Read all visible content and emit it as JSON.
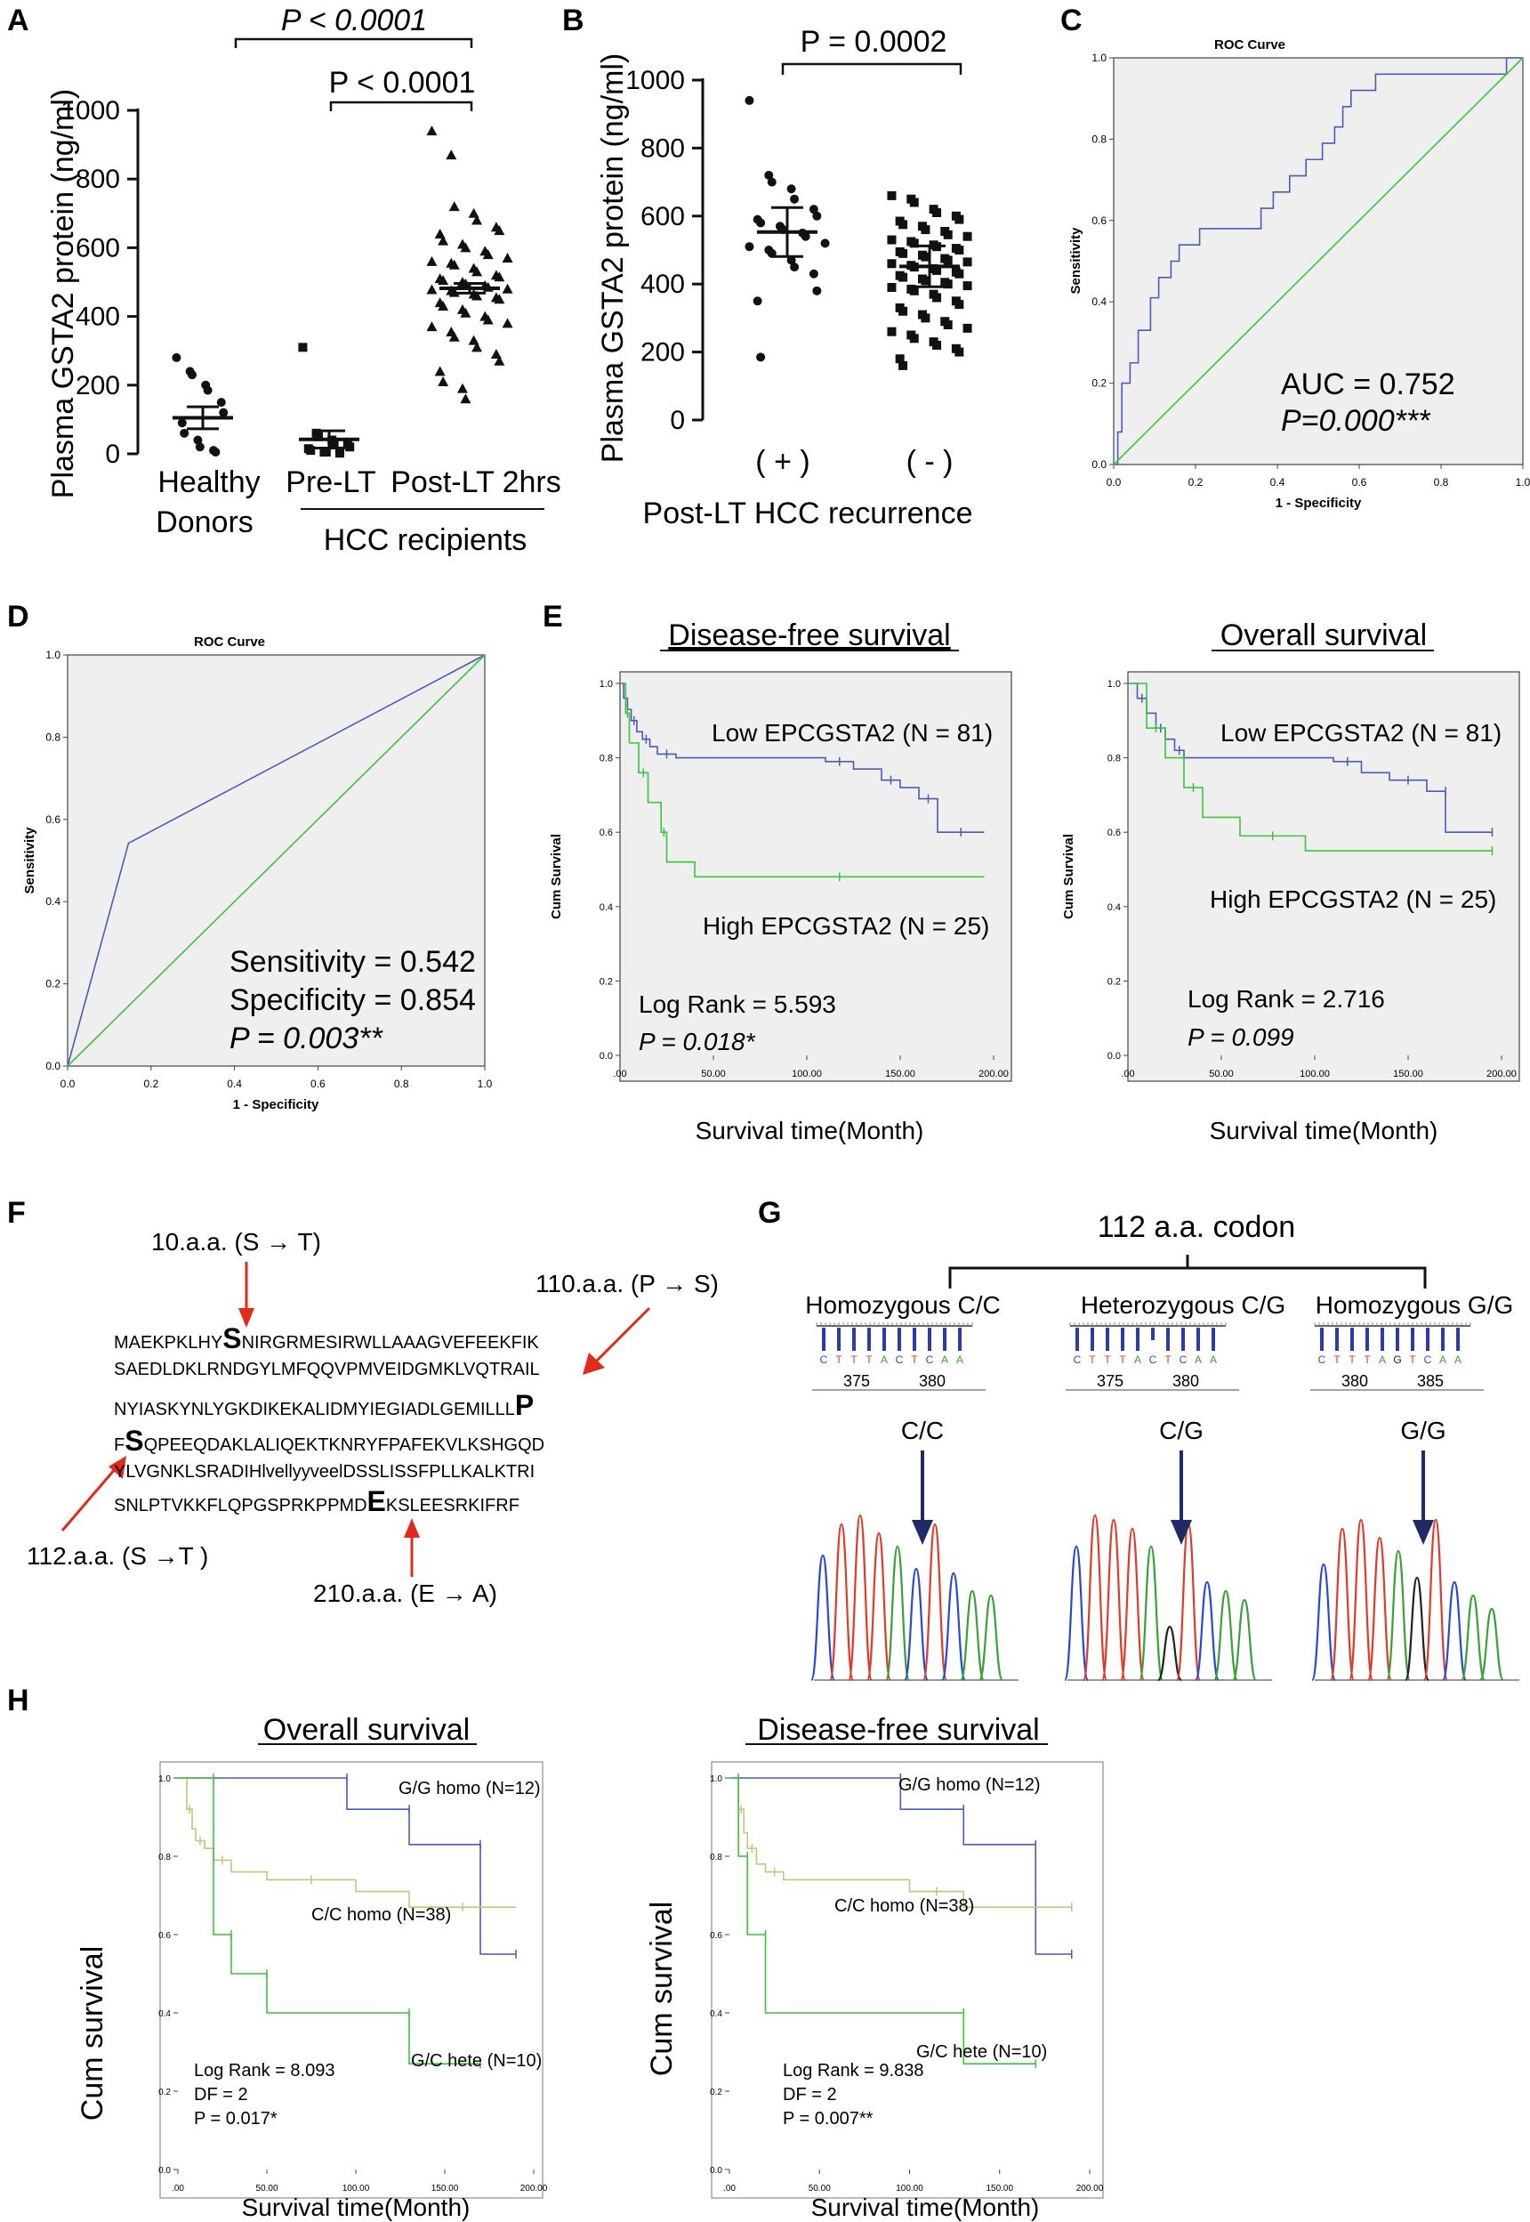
{
  "panels": {
    "A": {
      "label": "A",
      "ylabel": "Plasma GSTA2 protein (ng/ml)",
      "yticks": [
        "0",
        "200",
        "400",
        "600",
        "800",
        "1000"
      ],
      "p_overall": "P < 0.0001",
      "p_pre_post": "P < 0.0001",
      "group1_line1": "Healthy",
      "group1_line2": "Donors",
      "group2": "Pre-LT",
      "group3": "Post-LT 2hrs",
      "group_caption": "HCC recipients"
    },
    "B": {
      "label": "B",
      "ylabel": "Plasma GSTA2 protein (ng/ml)",
      "yticks": [
        "0",
        "200",
        "400",
        "600",
        "800",
        "1000"
      ],
      "p_value": "P = 0.0002",
      "group1": "( + )",
      "group2": "( - )",
      "xlabel": "Post-LT HCC recurrence"
    },
    "C": {
      "label": "C",
      "title": "ROC Curve",
      "ylabel": "Sensitivity",
      "xlabel": "1 - Specificity",
      "ticks": [
        "0.0",
        "0.2",
        "0.4",
        "0.6",
        "0.8",
        "1.0"
      ],
      "auc": "AUC = 0.752",
      "p": "P=0.000***"
    },
    "D": {
      "label": "D",
      "title": "ROC Curve",
      "ylabel": "Sensitivity",
      "xlabel": "1 - Specificity",
      "ticks": [
        "0.0",
        "0.2",
        "0.4",
        "0.6",
        "0.8",
        "1.0"
      ],
      "sensitivity": "Sensitivity = 0.542",
      "specificity": "Specificity = 0.854",
      "p": "P = 0.003**"
    },
    "E": {
      "label": "E",
      "left_title": "Disease-free survival",
      "right_title": "Overall survival",
      "ylabel": "Cum Survival",
      "xlabel": "Survival time(Month)",
      "yticks": [
        "0.0",
        "0.2",
        "0.4",
        "0.6",
        "0.8",
        "1.0"
      ],
      "xticks": [
        ".00",
        "50.00",
        "100.00",
        "150.00",
        "200.00"
      ],
      "low_label": "Low EPCGSTA2 (N = 81)",
      "high_label": "High EPCGSTA2 (N = 25)",
      "left_logrank": "Log Rank = 5.593",
      "left_p": "P = 0.018*",
      "right_logrank": "Log Rank = 2.716",
      "right_p": "P = 0.099"
    },
    "F": {
      "label": "F",
      "mut10": "10.a.a. (S → T)",
      "mut110": "110.a.a. (P → S)",
      "mut112": "112.a.a. (S →T )",
      "mut210": "210.a.a. (E → A)",
      "seq1a": "MAEKPKLHY",
      "seq1b": "S",
      "seq1c": "NIRGRMESIRWLLAAAGVEFEEKFIK",
      "seq2": "SAEDLDKLRNDGYLMFQQVPMVEIDGMKLVQTRAIL",
      "seq3a": "NYIASKYNLYGKDIKEKALIDMYIEGIADLGEMILLL",
      "seq3b": "P",
      "seq4a": "F",
      "seq4b": "S",
      "seq4c": "QPEEQDAKLALIQEKTKNRYFPAFEKVLKSHGQD",
      "seq5": "YLVGNKLSRADIHlvellyyveelDSSLISSFPLLKALKTRI",
      "seq6a": "SNLPTVKKFLQPGSPRKPPMD",
      "seq6b": "E",
      "seq6c": "KSLEESRKIFRF"
    },
    "G": {
      "label": "G",
      "codon_title": "112 a.a. codon",
      "geno1": "Homozygous C/C",
      "geno2": "Heterozygous C/G",
      "geno3": "Homozygous G/G",
      "short1": "C/C",
      "short2": "C/G",
      "short3": "G/G",
      "seqA": [
        "C",
        "T",
        "T",
        "T",
        "A",
        "C",
        "T",
        "C",
        "A",
        "A"
      ],
      "seqB": [
        "C",
        "T",
        "T",
        "T",
        "A",
        "C",
        "T",
        "C",
        "A",
        "A"
      ],
      "seqC": [
        "C",
        "T",
        "T",
        "T",
        "A",
        "G",
        "T",
        "C",
        "A",
        "A"
      ],
      "posA": [
        "375",
        "380"
      ],
      "posB": [
        "375",
        "380"
      ],
      "posC": [
        "380",
        "385"
      ]
    },
    "H": {
      "label": "H",
      "left_title": "Overall survival",
      "right_title": "Disease-free survival",
      "ylabel": "Cum survival",
      "xlabel": "Survival time(Month)",
      "yticks": [
        "0.0",
        "0.2",
        "0.4",
        "0.6",
        "0.8",
        "1.0"
      ],
      "xticks": [
        ".00",
        "50.00",
        "100.00",
        "150.00",
        "200.00"
      ],
      "gg": "G/G homo (N=12)",
      "cc": "C/C homo (N=38)",
      "gc": "G/C hete (N=10)",
      "left_logrank": "Log Rank = 8.093",
      "left_df": "DF = 2",
      "left_p": "P = 0.017*",
      "right_logrank": "Log Rank = 9.838",
      "right_df": "DF = 2",
      "right_p": "P = 0.007**"
    }
  },
  "colors": {
    "blue": "#4a5cb8",
    "green": "#3cc43c",
    "tan": "#c9c27a",
    "red": "#e02a1a",
    "navy": "#1f2a66",
    "trace_c": "#2a48d8",
    "trace_t": "#e23a2a",
    "trace_a": "#3aa03a",
    "trace_g": "#222222"
  },
  "chart_data": [
    {
      "type": "scatter",
      "panel": "A",
      "title": "",
      "ylabel": "Plasma GSTA2 protein (ng/ml)",
      "ylim": [
        0,
        1000
      ],
      "categories": [
        "Healthy Donors",
        "Pre-LT",
        "Post-LT 2hrs"
      ],
      "series": [
        {
          "name": "Healthy Donors",
          "mean": 105,
          "sem": 32,
          "values": [
            280,
            240,
            230,
            200,
            185,
            150,
            120,
            90,
            60,
            40,
            20,
            10,
            5
          ]
        },
        {
          "name": "Pre-LT",
          "mean": 42,
          "sem": 25,
          "values": [
            310,
            60,
            50,
            40,
            30,
            30,
            20,
            15,
            10,
            5,
            5,
            2
          ]
        },
        {
          "name": "Post-LT 2hrs",
          "mean": 482,
          "sem": 14,
          "values": [
            940,
            870,
            720,
            700,
            680,
            660,
            650,
            640,
            620,
            610,
            600,
            590,
            580,
            570,
            560,
            555,
            550,
            540,
            530,
            520,
            515,
            510,
            505,
            500,
            495,
            490,
            485,
            480,
            478,
            475,
            470,
            465,
            460,
            455,
            450,
            440,
            430,
            420,
            410,
            400,
            390,
            380,
            370,
            355,
            340,
            330,
            310,
            290,
            270,
            240,
            210,
            190,
            160
          ]
        }
      ]
    },
    {
      "type": "scatter",
      "panel": "B",
      "ylabel": "Plasma GSTA2 protein (ng/ml)",
      "xlabel": "Post-LT HCC recurrence",
      "ylim": [
        0,
        1000
      ],
      "categories": [
        "( + )",
        "( - )"
      ],
      "series": [
        {
          "name": "( + )",
          "mean": 553,
          "sd": 72,
          "values": [
            940,
            720,
            700,
            680,
            650,
            620,
            600,
            590,
            580,
            570,
            560,
            550,
            540,
            520,
            510,
            500,
            490,
            470,
            450,
            430,
            380,
            350,
            185
          ]
        },
        {
          "name": "( - )",
          "mean": 452,
          "sd": 60,
          "values": [
            660,
            650,
            640,
            620,
            610,
            600,
            590,
            585,
            575,
            570,
            560,
            555,
            545,
            540,
            530,
            525,
            520,
            515,
            510,
            505,
            500,
            495,
            490,
            485,
            480,
            475,
            470,
            465,
            460,
            455,
            450,
            445,
            440,
            435,
            430,
            425,
            420,
            415,
            410,
            405,
            400,
            395,
            390,
            385,
            380,
            370,
            360,
            350,
            340,
            330,
            320,
            310,
            300,
            290,
            280,
            270,
            260,
            250,
            240,
            230,
            220,
            210,
            200,
            180,
            160
          ]
        }
      ]
    },
    {
      "type": "line",
      "panel": "C",
      "title": "ROC Curve",
      "xlabel": "1 - Specificity",
      "ylabel": "Sensitivity",
      "xlim": [
        0,
        1
      ],
      "ylim": [
        0,
        1
      ],
      "series": [
        {
          "name": "ROC",
          "x": [
            0,
            0.01,
            0.01,
            0.02,
            0.02,
            0.04,
            0.04,
            0.06,
            0.06,
            0.09,
            0.09,
            0.11,
            0.11,
            0.14,
            0.14,
            0.16,
            0.16,
            0.21,
            0.21,
            0.28,
            0.28,
            0.36,
            0.36,
            0.39,
            0.39,
            0.43,
            0.43,
            0.47,
            0.47,
            0.51,
            0.51,
            0.54,
            0.54,
            0.56,
            0.56,
            0.58,
            0.58,
            0.61,
            0.61,
            0.64,
            0.64,
            0.69,
            0.69,
            0.96,
            0.96,
            1.0,
            1.0
          ],
          "y": [
            0,
            0,
            0.08,
            0.08,
            0.2,
            0.2,
            0.25,
            0.25,
            0.33,
            0.33,
            0.41,
            0.41,
            0.46,
            0.46,
            0.5,
            0.5,
            0.54,
            0.54,
            0.58,
            0.58,
            0.58,
            0.58,
            0.63,
            0.63,
            0.67,
            0.67,
            0.71,
            0.71,
            0.75,
            0.75,
            0.79,
            0.79,
            0.83,
            0.83,
            0.88,
            0.88,
            0.92,
            0.92,
            0.92,
            0.92,
            0.96,
            0.96,
            0.96,
            0.96,
            1.0,
            1.0,
            1.0
          ]
        },
        {
          "name": "Reference",
          "x": [
            0,
            1
          ],
          "y": [
            0,
            1
          ]
        }
      ]
    },
    {
      "type": "line",
      "panel": "D",
      "title": "ROC Curve",
      "xlabel": "1 - Specificity",
      "ylabel": "Sensitivity",
      "xlim": [
        0,
        1
      ],
      "ylim": [
        0,
        1
      ],
      "series": [
        {
          "name": "ROC",
          "x": [
            0,
            0.146,
            1.0
          ],
          "y": [
            0,
            0.542,
            1.0
          ]
        },
        {
          "name": "Reference",
          "x": [
            0,
            1
          ],
          "y": [
            0,
            1
          ]
        }
      ]
    },
    {
      "type": "line",
      "panel": "E-left",
      "title": "Disease-free survival",
      "xlabel": "Survival time(Month)",
      "ylabel": "Cum Survival",
      "xlim": [
        0,
        200
      ],
      "ylim": [
        0,
        1
      ],
      "series": [
        {
          "name": "Low EPCGSTA2 (N = 81)",
          "x": [
            0,
            2,
            4,
            6,
            9,
            12,
            16,
            20,
            30,
            110,
            125,
            140,
            150,
            160,
            170,
            170,
            195
          ],
          "y": [
            1.0,
            0.96,
            0.93,
            0.9,
            0.87,
            0.85,
            0.83,
            0.81,
            0.8,
            0.79,
            0.77,
            0.74,
            0.72,
            0.69,
            0.69,
            0.6,
            0.6
          ]
        },
        {
          "name": "High EPCGSTA2 (N = 25)",
          "x": [
            0,
            3,
            5,
            10,
            15,
            22,
            25,
            40,
            195
          ],
          "y": [
            1.0,
            0.92,
            0.84,
            0.76,
            0.68,
            0.6,
            0.52,
            0.48,
            0.48
          ]
        }
      ]
    },
    {
      "type": "line",
      "panel": "E-right",
      "title": "Overall survival",
      "xlabel": "Survival time(Month)",
      "ylabel": "Cum Survival",
      "xlim": [
        0,
        200
      ],
      "ylim": [
        0,
        1
      ],
      "series": [
        {
          "name": "Low EPCGSTA2 (N = 81)",
          "x": [
            0,
            5,
            10,
            15,
            20,
            25,
            30,
            110,
            125,
            140,
            160,
            170,
            170,
            195
          ],
          "y": [
            1.0,
            0.96,
            0.92,
            0.88,
            0.85,
            0.82,
            0.8,
            0.79,
            0.76,
            0.74,
            0.71,
            0.71,
            0.6,
            0.6
          ]
        },
        {
          "name": "High EPCGSTA2 (N = 25)",
          "x": [
            0,
            10,
            20,
            30,
            40,
            60,
            95,
            195
          ],
          "y": [
            1.0,
            0.88,
            0.8,
            0.72,
            0.64,
            0.59,
            0.55,
            0.55
          ]
        }
      ]
    },
    {
      "type": "line",
      "panel": "H-left",
      "title": "Overall survival",
      "xlabel": "Survival time(Month)",
      "ylabel": "Cum survival",
      "xlim": [
        0,
        200
      ],
      "ylim": [
        0,
        1
      ],
      "series": [
        {
          "name": "G/G homo (N=12)",
          "x": [
            0,
            95,
            95,
            130,
            130,
            170,
            170,
            190
          ],
          "y": [
            1.0,
            1.0,
            0.92,
            0.92,
            0.83,
            0.83,
            0.55,
            0.55
          ]
        },
        {
          "name": "C/C homo (N=38)",
          "x": [
            0,
            5,
            8,
            10,
            15,
            20,
            30,
            50,
            100,
            130,
            190
          ],
          "y": [
            1.0,
            0.92,
            0.87,
            0.84,
            0.82,
            0.79,
            0.76,
            0.74,
            0.71,
            0.67,
            0.67
          ]
        },
        {
          "name": "G/C hete (N=10)",
          "x": [
            0,
            20,
            20,
            30,
            30,
            50,
            50,
            130,
            130,
            170
          ],
          "y": [
            1.0,
            1.0,
            0.6,
            0.6,
            0.5,
            0.5,
            0.4,
            0.4,
            0.27,
            0.27
          ]
        }
      ]
    },
    {
      "type": "line",
      "panel": "H-right",
      "title": "Disease-free survival",
      "xlabel": "Survival time(Month)",
      "ylabel": "Cum survival",
      "xlim": [
        0,
        200
      ],
      "ylim": [
        0,
        1
      ],
      "series": [
        {
          "name": "G/G homo (N=12)",
          "x": [
            0,
            95,
            95,
            130,
            130,
            170,
            170,
            190
          ],
          "y": [
            1.0,
            1.0,
            0.92,
            0.92,
            0.83,
            0.83,
            0.55,
            0.55
          ]
        },
        {
          "name": "C/C homo (N=38)",
          "x": [
            0,
            5,
            8,
            10,
            15,
            20,
            30,
            100,
            130,
            190
          ],
          "y": [
            1.0,
            0.92,
            0.86,
            0.82,
            0.78,
            0.76,
            0.74,
            0.71,
            0.67,
            0.67
          ]
        },
        {
          "name": "G/C hete (N=10)",
          "x": [
            0,
            5,
            5,
            10,
            10,
            20,
            20,
            130,
            130,
            170
          ],
          "y": [
            1.0,
            1.0,
            0.8,
            0.8,
            0.6,
            0.6,
            0.4,
            0.4,
            0.27,
            0.27
          ]
        }
      ]
    }
  ]
}
